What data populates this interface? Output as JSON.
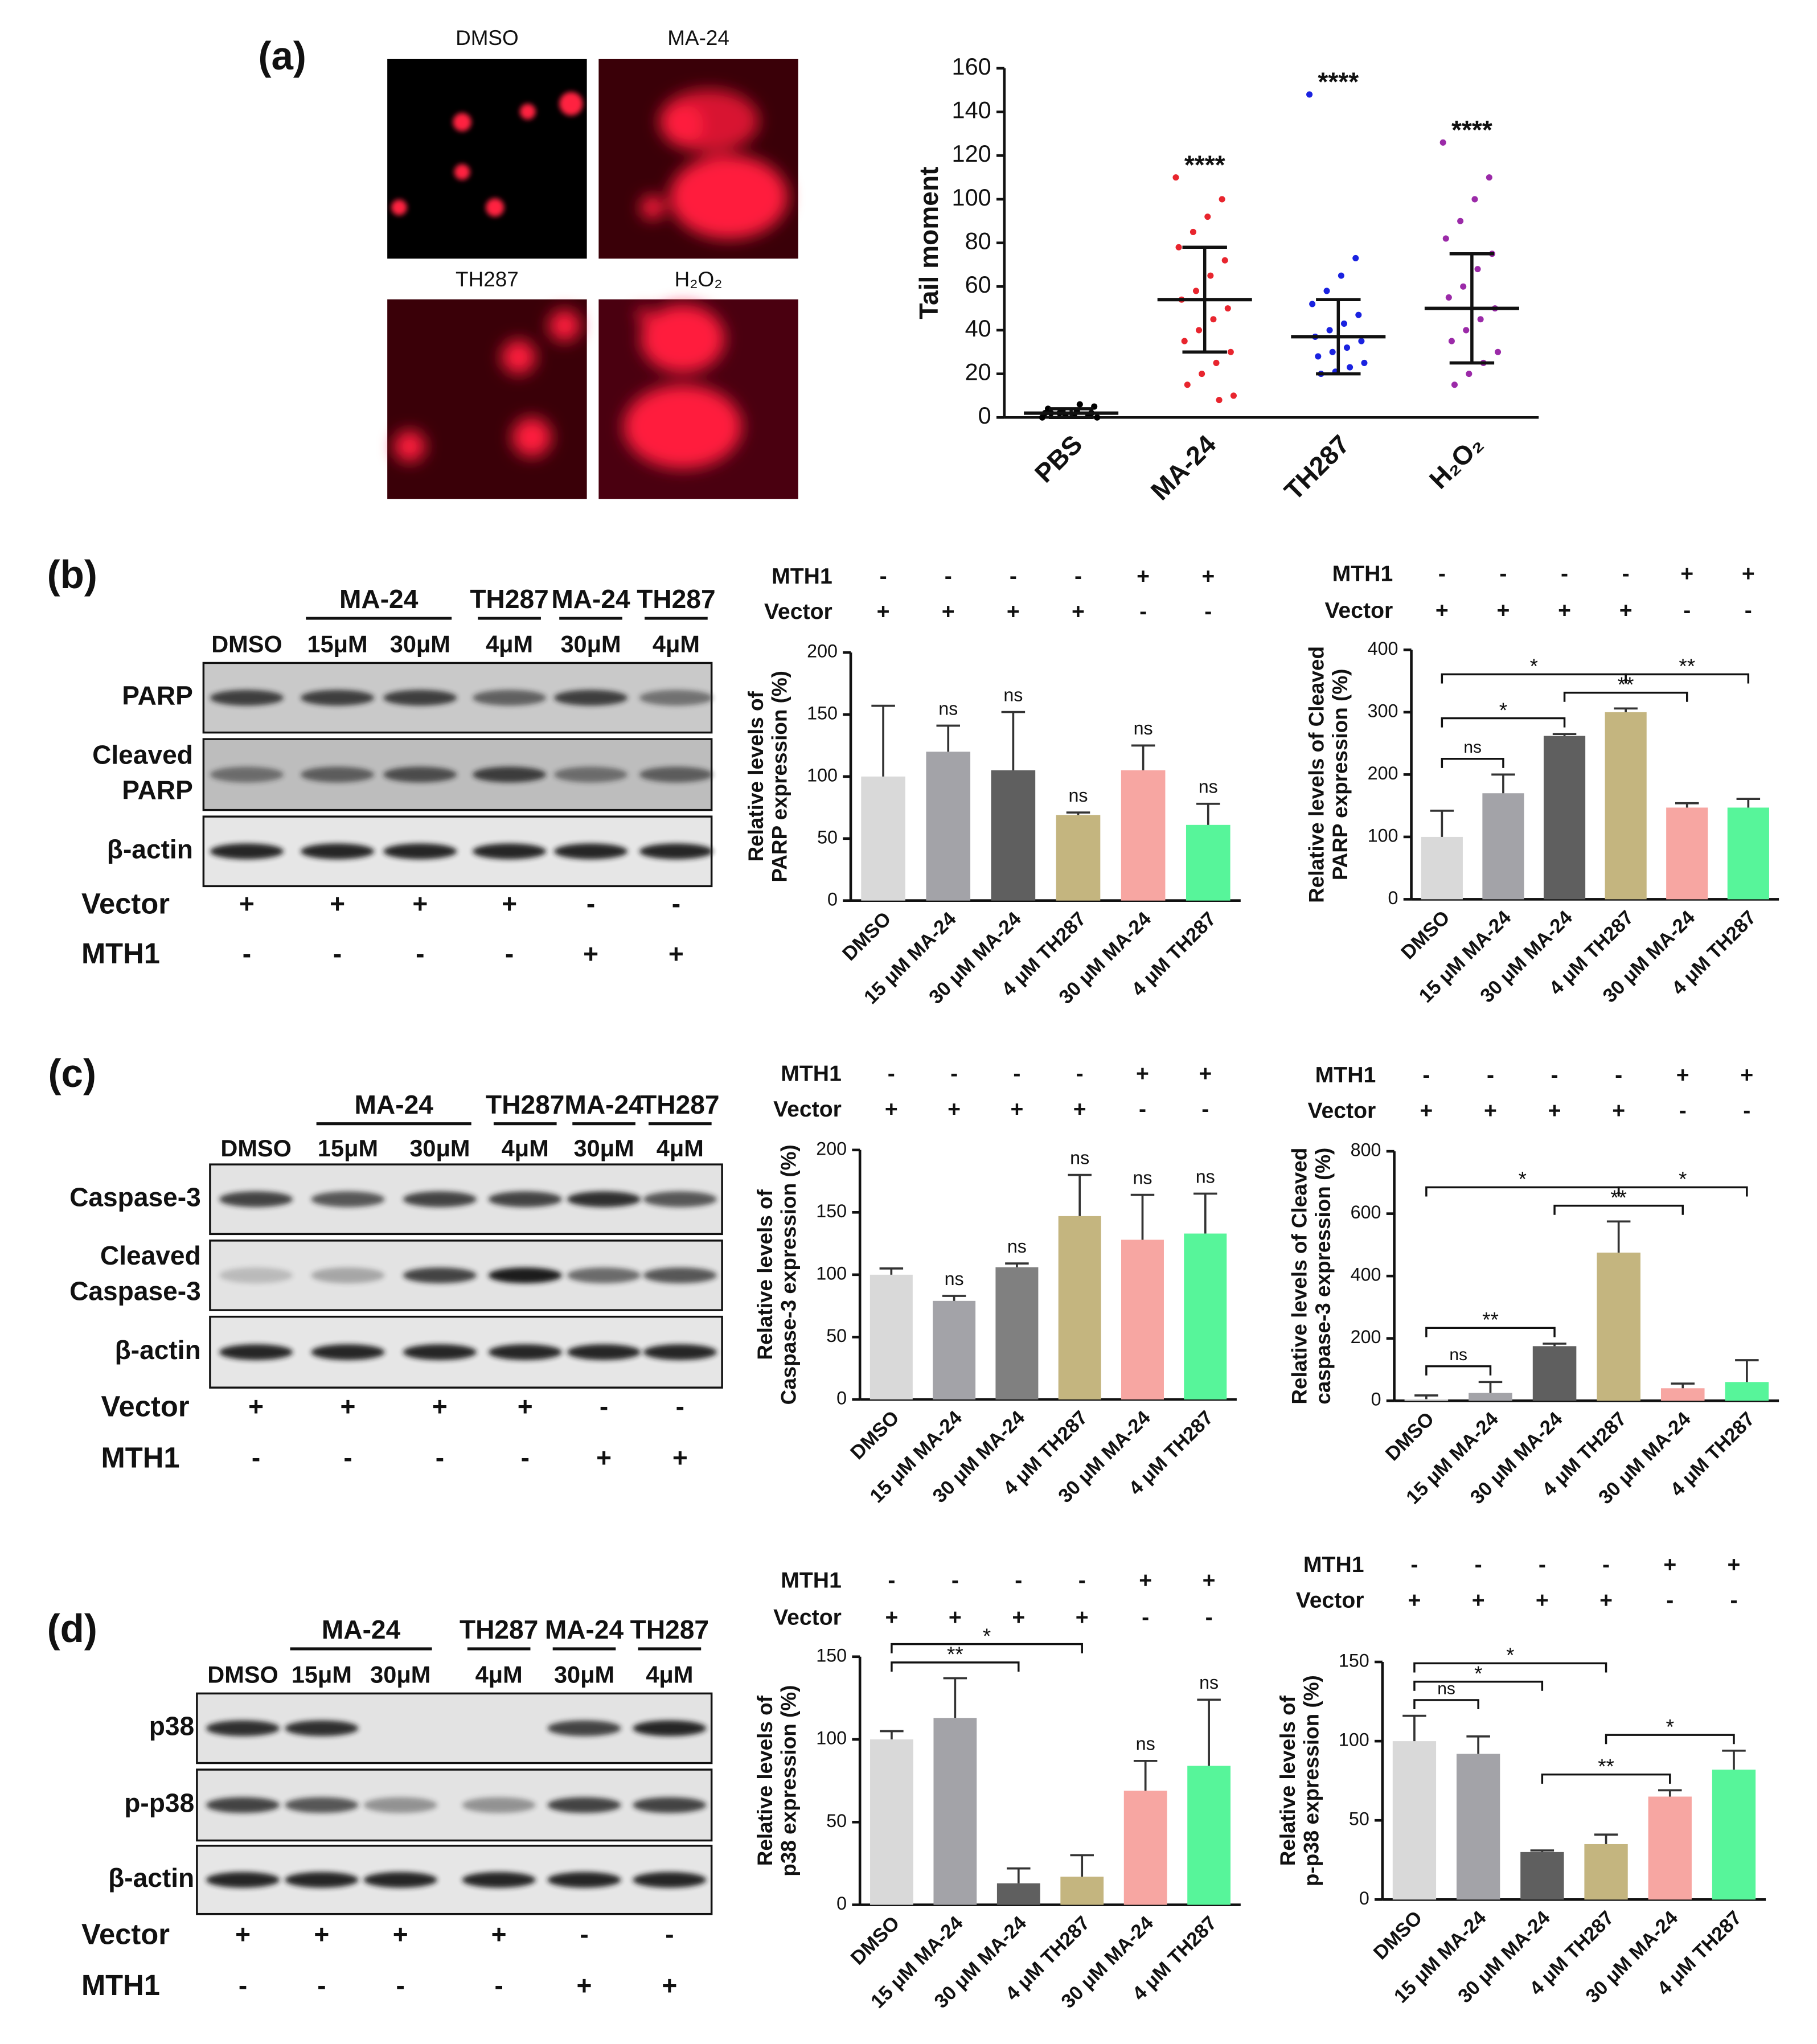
{
  "figure": {
    "panel_labels": [
      "(a)",
      "(b)",
      "(c)",
      "(d)"
    ],
    "images": [
      "DMSO",
      "MA-24",
      "TH287",
      "H₂O₂"
    ],
    "blots": [
      {
        "groups": [
          "MA-24",
          "TH287",
          "MA-24",
          "TH287"
        ],
        "lanes": [
          "DMSO",
          "15μM",
          "30μM",
          "4μM",
          "30μM",
          "4μM"
        ],
        "rows": [
          [
            "PARP"
          ],
          [
            "Cleaved",
            "PARP"
          ],
          [
            "β-actin"
          ]
        ],
        "conditions": [
          {
            "name": "Vector",
            "values": [
              "+",
              "+",
              "+",
              "+",
              "-",
              "-"
            ]
          },
          {
            "name": "MTH1",
            "values": [
              "-",
              "-",
              "-",
              "-",
              "+",
              "+"
            ]
          }
        ]
      },
      {
        "groups": [
          "MA-24",
          "TH287",
          "MA-24",
          "TH287"
        ],
        "lanes": [
          "DMSO",
          "15μM",
          "30μM",
          "4μM",
          "30μM",
          "4μM"
        ],
        "rows": [
          [
            "Caspase-3"
          ],
          [
            "Cleaved",
            "Caspase-3"
          ],
          [
            "β-actin"
          ]
        ],
        "conditions": [
          {
            "name": "Vector",
            "values": [
              "+",
              "+",
              "+",
              "+",
              "-",
              "-"
            ]
          },
          {
            "name": "MTH1",
            "values": [
              "-",
              "-",
              "-",
              "-",
              "+",
              "+"
            ]
          }
        ]
      },
      {
        "groups": [
          "MA-24",
          "TH287",
          "MA-24",
          "TH287"
        ],
        "lanes": [
          "DMSO",
          "15μM",
          "30μM",
          "4μM",
          "30μM",
          "4μM"
        ],
        "rows": [
          [
            "p38"
          ],
          [
            "p-p38"
          ],
          [
            "β-actin"
          ]
        ],
        "conditions": [
          {
            "name": "Vector",
            "values": [
              "+",
              "+",
              "+",
              "+",
              "-",
              "-"
            ]
          },
          {
            "name": "MTH1",
            "values": [
              "-",
              "-",
              "-",
              "-",
              "+",
              "+"
            ]
          }
        ]
      }
    ]
  },
  "chart_data": [
    {
      "type": "dot",
      "ylabel": "Tail moment",
      "categories": [
        "PBS",
        "MA-24",
        "TH287",
        "H₂O₂"
      ],
      "colors": [
        "#000000",
        "#e8252e",
        "#1a22e0",
        "#9b2aa8"
      ],
      "values": [
        2,
        54,
        37,
        50
      ],
      "errors": [
        2,
        24,
        17,
        25
      ],
      "points": [
        [
          0,
          1,
          1,
          2,
          2,
          2,
          3,
          3,
          4,
          5,
          6,
          1,
          2,
          0
        ],
        [
          110,
          100,
          92,
          85,
          78,
          72,
          65,
          58,
          54,
          50,
          45,
          40,
          35,
          30,
          25,
          20,
          15,
          10,
          8
        ],
        [
          148,
          73,
          65,
          58,
          52,
          47,
          43,
          40,
          37,
          35,
          32,
          30,
          28,
          25,
          23,
          21,
          20
        ],
        [
          126,
          110,
          100,
          90,
          82,
          75,
          68,
          60,
          55,
          50,
          45,
          40,
          35,
          30,
          25,
          20,
          15
        ]
      ],
      "annotations": [
        null,
        "****",
        "****",
        "****"
      ],
      "ylim": [
        0,
        160
      ],
      "yticks": [
        0,
        20,
        40,
        60,
        80,
        100,
        120,
        140,
        160
      ]
    },
    {
      "type": "bar",
      "ylabel": [
        "Relative levels of",
        "PARP expression (%)"
      ],
      "categories": [
        "DMSO",
        "15 μM MA-24",
        "30 μM MA-24",
        "4 μM TH287",
        "30 μM MA-24",
        "4 μM TH287"
      ],
      "colors": [
        "#d9d9d9",
        "#a3a3a8",
        "#5f5f5f",
        "#c4b57f",
        "#f7a6a2",
        "#57f59a"
      ],
      "values": [
        100,
        120,
        105,
        69,
        105,
        61
      ],
      "errors": [
        57,
        21,
        47,
        2,
        20,
        17
      ],
      "annotations": [
        null,
        "ns",
        "ns",
        "ns",
        "ns",
        "ns"
      ],
      "brackets": [],
      "conditions": [
        {
          "name": "MTH1",
          "values": [
            "-",
            "-",
            "-",
            "-",
            "+",
            "+"
          ]
        },
        {
          "name": "Vector",
          "values": [
            "+",
            "+",
            "+",
            "+",
            "-",
            "-"
          ]
        }
      ],
      "ylim": [
        0,
        200
      ],
      "yticks": [
        0,
        50,
        100,
        150,
        200
      ]
    },
    {
      "type": "bar",
      "ylabel": [
        "Relative levels of Cleaved",
        "PARP expression (%)"
      ],
      "categories": [
        "DMSO",
        "15 μM MA-24",
        "30 μM MA-24",
        "4 μM TH287",
        "30 μM MA-24",
        "4 μM TH287"
      ],
      "colors": [
        "#d9d9d9",
        "#a3a3a8",
        "#5f5f5f",
        "#c4b57f",
        "#f7a6a2",
        "#57f59a"
      ],
      "values": [
        100,
        170,
        262,
        300,
        147,
        147
      ],
      "errors": [
        42,
        30,
        3,
        6,
        7,
        14
      ],
      "annotations": [
        null,
        null,
        null,
        null,
        null,
        null
      ],
      "brackets": [
        {
          "from": 0,
          "to": 1,
          "label": "ns"
        },
        {
          "from": 0,
          "to": 2,
          "label": "*"
        },
        {
          "from": 2,
          "to": 4,
          "label": "**"
        },
        {
          "from": 0,
          "to": 3,
          "label": "*"
        },
        {
          "from": 3,
          "to": 5,
          "label": "**"
        }
      ],
      "conditions": [
        {
          "name": "MTH1",
          "values": [
            "-",
            "-",
            "-",
            "-",
            "+",
            "+"
          ]
        },
        {
          "name": "Vector",
          "values": [
            "+",
            "+",
            "+",
            "+",
            "-",
            "-"
          ]
        }
      ],
      "ylim": [
        0,
        400
      ],
      "yticks": [
        0,
        100,
        200,
        300,
        400
      ]
    },
    {
      "type": "bar",
      "ylabel": [
        "Relative levels of",
        "Caspase-3 expression (%)"
      ],
      "categories": [
        "DMSO",
        "15 μM MA-24",
        "30 μM MA-24",
        "4 μM TH287",
        "30 μM MA-24",
        "4 μM TH287"
      ],
      "colors": [
        "#d9d9d9",
        "#a3a3a8",
        "#808080",
        "#c4b57f",
        "#f7a6a2",
        "#57f59a"
      ],
      "values": [
        100,
        79,
        106,
        147,
        128,
        133
      ],
      "errors": [
        5,
        4,
        3,
        33,
        36,
        32
      ],
      "annotations": [
        null,
        "ns",
        "ns",
        "ns",
        "ns",
        "ns"
      ],
      "brackets": [],
      "conditions": [
        {
          "name": "MTH1",
          "values": [
            "-",
            "-",
            "-",
            "-",
            "+",
            "+"
          ]
        },
        {
          "name": "Vector",
          "values": [
            "+",
            "+",
            "+",
            "+",
            "-",
            "-"
          ]
        }
      ],
      "ylim": [
        0,
        200
      ],
      "yticks": [
        0,
        50,
        100,
        150,
        200
      ]
    },
    {
      "type": "bar",
      "ylabel": [
        "Relative levels of Cleaved",
        "caspase-3 expression (%)"
      ],
      "categories": [
        "DMSO",
        "15 μM MA-24",
        "30 μM MA-24",
        "4 μM TH287",
        "30 μM MA-24",
        "4 μM TH287"
      ],
      "colors": [
        "#d9d9d9",
        "#a3a3a8",
        "#5f5f5f",
        "#c4b57f",
        "#f7a6a2",
        "#57f59a"
      ],
      "values": [
        5,
        25,
        175,
        475,
        40,
        60
      ],
      "errors": [
        12,
        35,
        8,
        100,
        15,
        70
      ],
      "annotations": [
        null,
        null,
        null,
        null,
        null,
        null
      ],
      "brackets": [
        {
          "from": 0,
          "to": 1,
          "label": "ns"
        },
        {
          "from": 0,
          "to": 2,
          "label": "**"
        },
        {
          "from": 2,
          "to": 4,
          "label": "**"
        },
        {
          "from": 0,
          "to": 3,
          "label": "*"
        },
        {
          "from": 3,
          "to": 5,
          "label": "*"
        }
      ],
      "conditions": [
        {
          "name": "MTH1",
          "values": [
            "-",
            "-",
            "-",
            "-",
            "+",
            "+"
          ]
        },
        {
          "name": "Vector",
          "values": [
            "+",
            "+",
            "+",
            "+",
            "-",
            "-"
          ]
        }
      ],
      "ylim": [
        0,
        800
      ],
      "yticks": [
        0,
        200,
        400,
        600,
        800
      ]
    },
    {
      "type": "bar",
      "ylabel": [
        "Relative levels of",
        "p38 expression (%)"
      ],
      "categories": [
        "DMSO",
        "15 μM MA-24",
        "30 μM MA-24",
        "4 μM TH287",
        "30 μM MA-24",
        "4 μM TH287"
      ],
      "colors": [
        "#d9d9d9",
        "#a3a3a8",
        "#5f5f5f",
        "#c4b57f",
        "#f7a6a2",
        "#57f59a"
      ],
      "values": [
        100,
        113,
        13,
        17,
        69,
        84
      ],
      "errors": [
        5,
        24,
        9,
        13,
        18,
        40
      ],
      "annotations": [
        null,
        null,
        null,
        null,
        "ns",
        "ns"
      ],
      "brackets": [
        {
          "from": 0,
          "to": 2,
          "label": "**"
        },
        {
          "from": 0,
          "to": 3,
          "label": "*"
        }
      ],
      "conditions": [
        {
          "name": "MTH1",
          "values": [
            "-",
            "-",
            "-",
            "-",
            "+",
            "+"
          ]
        },
        {
          "name": "Vector",
          "values": [
            "+",
            "+",
            "+",
            "+",
            "-",
            "-"
          ]
        }
      ],
      "ylim": [
        0,
        150
      ],
      "yticks": [
        0,
        50,
        100,
        150
      ]
    },
    {
      "type": "bar",
      "ylabel": [
        "Relative levels of",
        "p-p38 expression (%)"
      ],
      "categories": [
        "DMSO",
        "15 μM MA-24",
        "30 μM MA-24",
        "4 μM TH287",
        "30 μM MA-24",
        "4 μM TH287"
      ],
      "colors": [
        "#d9d9d9",
        "#a3a3a8",
        "#5f5f5f",
        "#c4b57f",
        "#f7a6a2",
        "#57f59a"
      ],
      "values": [
        100,
        92,
        30,
        35,
        65,
        82
      ],
      "errors": [
        16,
        11,
        1,
        6,
        4,
        12
      ],
      "annotations": [
        null,
        null,
        null,
        null,
        null,
        null
      ],
      "brackets": [
        {
          "from": 0,
          "to": 1,
          "label": "ns"
        },
        {
          "from": 0,
          "to": 2,
          "label": "*"
        },
        {
          "from": 2,
          "to": 4,
          "label": "**"
        },
        {
          "from": 0,
          "to": 3,
          "label": "*"
        },
        {
          "from": 3,
          "to": 5,
          "label": "*"
        }
      ],
      "conditions": [
        {
          "name": "MTH1",
          "values": [
            "-",
            "-",
            "-",
            "-",
            "+",
            "+"
          ]
        },
        {
          "name": "Vector",
          "values": [
            "+",
            "+",
            "+",
            "+",
            "-",
            "-"
          ]
        }
      ],
      "ylim": [
        0,
        150
      ],
      "yticks": [
        0,
        50,
        100,
        150
      ]
    }
  ]
}
